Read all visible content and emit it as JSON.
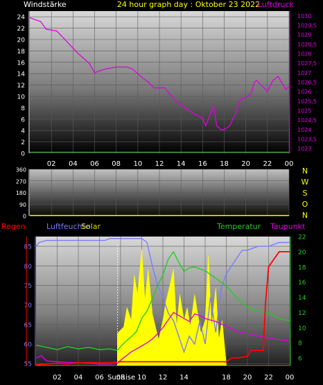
{
  "header": {
    "left_label": "Windstärke",
    "title": "24 hour graph day : Oktober 23 2022",
    "right_label": "Luftdruck"
  },
  "colors": {
    "wind": "#ffffff",
    "pressure": "#e000e0",
    "humidity": "#7b7bff",
    "solar": "#ffff00",
    "temperature": "#22cc22",
    "dewpoint": "#e000e0",
    "rain": "#ff0000",
    "background": "#000000"
  },
  "time_axis": {
    "ticks": [
      "02",
      "04",
      "06",
      "08",
      "10",
      "12",
      "14",
      "16",
      "18",
      "20",
      "22",
      "00"
    ],
    "sunrise_label": "SunRise"
  },
  "compass": {
    "letters": [
      "N",
      "W",
      "S",
      "O",
      "N"
    ]
  },
  "bottom_legend": {
    "rain": "Regen",
    "humidity": "Luftfeuchte",
    "solar": "Solar",
    "temperature": "Temperatur",
    "dewpoint": "Taupunkt"
  },
  "chart_data": [
    {
      "type": "line",
      "title": "24 hour graph day : Oktober 23 2022",
      "left_axis": {
        "label": "Windstärke",
        "ticks": [
          "24",
          "22",
          "20",
          "18",
          "16",
          "14",
          "12",
          "10",
          "8",
          "6",
          "4",
          "2",
          "0"
        ],
        "range": [
          0,
          25
        ]
      },
      "right_axis": {
        "label": "Luftdruck",
        "ticks": [
          "1030",
          "1029,5",
          "1029",
          "1028,5",
          "1028",
          "1027,5",
          "1027",
          "1026,5",
          "1026",
          "1025,5",
          "1025",
          "1024,5",
          "1024",
          "1023,5",
          "1023"
        ],
        "range": [
          1022.75,
          1030.25
        ]
      },
      "series": [
        {
          "name": "Windstärke",
          "axis": "left",
          "x": [
            0,
            24
          ],
          "values": [
            0.2,
            0.2
          ]
        },
        {
          "name": "Luftdruck",
          "axis": "right",
          "x": [
            0,
            1,
            1.5,
            2.5,
            3.5,
            4.5,
            5.5,
            6,
            7,
            8,
            9,
            9.5,
            10.5,
            11,
            11.5,
            12.5,
            13.5,
            14,
            15,
            16,
            16.3,
            16.7,
            17.0,
            17.3,
            17.7,
            18.0,
            18.5,
            19.0,
            19.5,
            20.0,
            20.5,
            20.8,
            21.0,
            21.3,
            21.7,
            22.0,
            22.5,
            23.0,
            23.3,
            23.7,
            24.0
          ],
          "values": [
            1029.9,
            1029.7,
            1029.3,
            1029.2,
            1028.6,
            1028.0,
            1027.5,
            1027.0,
            1027.2,
            1027.3,
            1027.3,
            1027.2,
            1026.7,
            1026.5,
            1026.2,
            1026.2,
            1025.5,
            1025.3,
            1024.9,
            1024.6,
            1024.2,
            1024.8,
            1025.3,
            1024.2,
            1024.0,
            1024.0,
            1024.2,
            1024.8,
            1025.6,
            1025.7,
            1025.9,
            1026.5,
            1026.6,
            1026.4,
            1026.2,
            1026.0,
            1026.6,
            1026.8,
            1026.5,
            1026.1,
            1026.3
          ]
        }
      ]
    },
    {
      "type": "line",
      "title": "",
      "left_axis": {
        "ticks": [
          "360",
          "270",
          "180",
          "90",
          "0"
        ],
        "range": [
          0,
          360
        ]
      },
      "right_axis": {
        "ticks": [
          "N",
          "W",
          "S",
          "O",
          "N"
        ]
      },
      "series": [
        {
          "name": "Windrichtung",
          "axis": "left",
          "x": [
            0,
            24
          ],
          "values": [
            2,
            2
          ]
        }
      ]
    },
    {
      "type": "line",
      "title": "",
      "left_axis": {
        "label": "Luftfeuchte",
        "ticks": [
          "85",
          "80",
          "75",
          "70",
          "65",
          "60",
          "55"
        ],
        "range": [
          54.5,
          87.5
        ]
      },
      "right_axis": {
        "label": "Temperatur",
        "ticks": [
          "22",
          "20",
          "18",
          "16",
          "14",
          "12",
          "10",
          "8",
          "6"
        ],
        "range": [
          5,
          22
        ]
      },
      "series": [
        {
          "name": "Luftfeuchte",
          "axis": "left",
          "x": [
            0,
            0.3,
            1,
            3,
            5,
            6.5,
            7,
            7.5,
            9,
            10,
            10.5,
            11,
            11.5,
            12,
            12.5,
            13,
            13.5,
            14,
            14.5,
            15,
            15.5,
            16,
            16.5,
            17,
            17.5,
            18,
            18.5,
            19.0,
            19.5,
            20,
            21,
            22,
            23,
            24
          ],
          "values": [
            85,
            86,
            86.5,
            86.5,
            86.5,
            86.5,
            87,
            87,
            87,
            87,
            86,
            80,
            75,
            72,
            68,
            66,
            62,
            58,
            62,
            60,
            66,
            60,
            72,
            63,
            74,
            78,
            80,
            82,
            84,
            84,
            85,
            85,
            86,
            86
          ]
        },
        {
          "name": "Solar",
          "axis": "none",
          "x": [
            0,
            7.7,
            7.7,
            8.3,
            8.6,
            9.0,
            9.3,
            9.6,
            10.0,
            10.3,
            10.6,
            11.0,
            11.3,
            11.6,
            12.0,
            12.3,
            12.6,
            13.0,
            13.3,
            13.6,
            14.0,
            14.3,
            14.6,
            15.0,
            15.3,
            15.6,
            16.0,
            16.3,
            16.6,
            17.0,
            17.3,
            17.6,
            17.9,
            18.0,
            24
          ],
          "values": [
            0,
            0,
            0.25,
            0.3,
            0.45,
            0.35,
            0.7,
            0.55,
            0.9,
            0.5,
            0.75,
            0.4,
            0.3,
            0.2,
            0.35,
            0.5,
            0.6,
            0.75,
            0.3,
            0.55,
            0.35,
            0.45,
            0.3,
            0.55,
            0.4,
            0.25,
            0.35,
            0.85,
            0.3,
            0.6,
            0.2,
            0.35,
            0.1,
            0,
            0
          ]
        },
        {
          "name": "Temperatur",
          "axis": "right",
          "x": [
            0,
            1,
            2,
            3,
            4,
            5,
            6,
            7,
            7.7,
            8,
            8.5,
            9,
            9.5,
            10,
            10.5,
            11,
            11.5,
            12,
            12.5,
            13,
            13.5,
            14,
            14.5,
            15,
            16,
            17,
            18,
            19,
            20,
            21,
            22,
            23,
            24
          ],
          "values": [
            7.7,
            7.4,
            7.1,
            7.5,
            7.2,
            7.4,
            7.1,
            7.2,
            7.0,
            7.5,
            8.2,
            8.8,
            9.5,
            11.2,
            12.2,
            13.8,
            15.6,
            16.9,
            19.0,
            20.0,
            18.6,
            17.4,
            17.9,
            18.0,
            17.5,
            16.5,
            15.5,
            13.9,
            12.7,
            12.2,
            11.9,
            11.2,
            10.9
          ]
        },
        {
          "name": "Taupunkt",
          "axis": "right",
          "x": [
            0,
            0.5,
            1,
            2,
            3,
            4,
            5,
            6,
            7,
            7.7,
            8,
            9,
            10,
            10.5,
            11,
            11.5,
            12,
            12.5,
            13,
            13.5,
            14,
            14.5,
            15,
            15.5,
            16,
            17,
            18,
            19,
            20,
            21,
            22,
            23,
            24
          ],
          "values": [
            6.0,
            6.3,
            5.6,
            5.5,
            5.4,
            5.4,
            5.3,
            5.2,
            5.2,
            5.3,
            5.7,
            6.8,
            7.6,
            8.0,
            8.5,
            9.2,
            10.0,
            11.0,
            12.0,
            11.6,
            11.2,
            10.8,
            11.8,
            11.6,
            11.2,
            10.8,
            10.2,
            9.5,
            9.2,
            8.9,
            8.6,
            8.4,
            8.2
          ]
        },
        {
          "name": "Regen",
          "axis": "right",
          "x": [
            0,
            1,
            2,
            3,
            4,
            5,
            6,
            7,
            8,
            9,
            10,
            11,
            12,
            13,
            14,
            15,
            16,
            17,
            18,
            18.5,
            19.0,
            20.0,
            20.3,
            21.0,
            21.5,
            21.7,
            22.0,
            22.5,
            23.0,
            23.5,
            24.0
          ],
          "values": [
            5.1,
            5.2,
            5.3,
            5.2,
            5.4,
            5.4,
            5.4,
            5.4,
            5.5,
            5.5,
            5.5,
            5.5,
            5.5,
            5.5,
            5.5,
            5.5,
            5.5,
            5.5,
            5.5,
            6.0,
            6.0,
            6.2,
            7.0,
            7.0,
            7.0,
            13.0,
            18.0,
            19.0,
            20.0,
            20.0,
            20.0
          ]
        }
      ]
    }
  ]
}
